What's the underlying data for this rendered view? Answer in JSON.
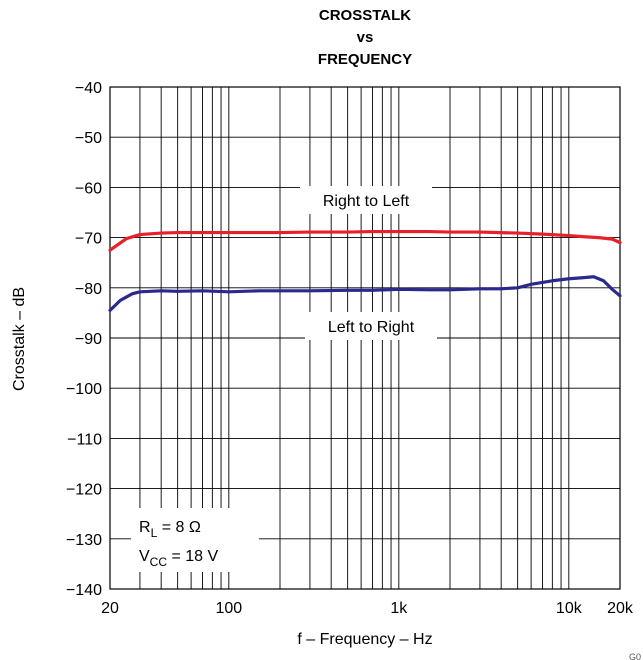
{
  "chart_data": {
    "type": "line",
    "title": [
      "CROSSTALK",
      "vs",
      "FREQUENCY"
    ],
    "xlabel": "f – Frequency – Hz",
    "ylabel": "Crosstalk – dB",
    "x_scale": "log",
    "xlim": [
      20,
      20000
    ],
    "ylim": [
      -140,
      -40
    ],
    "x_ticks": [
      {
        "value": 20,
        "label": "20"
      },
      {
        "value": 100,
        "label": "100"
      },
      {
        "value": 1000,
        "label": "1k"
      },
      {
        "value": 10000,
        "label": "10k"
      },
      {
        "value": 20000,
        "label": "20k"
      }
    ],
    "y_ticks": [
      {
        "value": -40,
        "label": "−40"
      },
      {
        "value": -50,
        "label": "−50"
      },
      {
        "value": -60,
        "label": "−60"
      },
      {
        "value": -70,
        "label": "−70"
      },
      {
        "value": -80,
        "label": "−80"
      },
      {
        "value": -90,
        "label": "−90"
      },
      {
        "value": -100,
        "label": "−100"
      },
      {
        "value": -110,
        "label": "−110"
      },
      {
        "value": -120,
        "label": "−120"
      },
      {
        "value": -130,
        "label": "−130"
      },
      {
        "value": -140,
        "label": "−140"
      }
    ],
    "grid": "log-major-minor",
    "series": [
      {
        "name": "Right to Left",
        "color": "#e8202a",
        "x": [
          20,
          25,
          30,
          40,
          50,
          70,
          100,
          150,
          200,
          300,
          500,
          700,
          1000,
          1500,
          2000,
          3000,
          5000,
          7000,
          10000,
          12000,
          15000,
          18000,
          20000
        ],
        "y": [
          -72.5,
          -70.2,
          -69.4,
          -69.1,
          -69.0,
          -69.0,
          -69.0,
          -69.0,
          -69.0,
          -68.9,
          -68.9,
          -68.8,
          -68.8,
          -68.8,
          -68.9,
          -68.9,
          -69.1,
          -69.3,
          -69.6,
          -69.8,
          -70.0,
          -70.3,
          -71.0
        ]
      },
      {
        "name": "Left to Right",
        "color": "#2a2a8e",
        "x": [
          20,
          23,
          27,
          30,
          40,
          50,
          70,
          100,
          150,
          200,
          300,
          500,
          700,
          1000,
          1500,
          2000,
          3000,
          4000,
          5000,
          6000,
          8000,
          10000,
          12000,
          14000,
          16000,
          18000,
          20000
        ],
        "y": [
          -84.5,
          -82.5,
          -81.2,
          -80.8,
          -80.6,
          -80.7,
          -80.6,
          -80.8,
          -80.6,
          -80.6,
          -80.6,
          -80.5,
          -80.5,
          -80.3,
          -80.4,
          -80.4,
          -80.2,
          -80.2,
          -80.0,
          -79.3,
          -78.6,
          -78.2,
          -78.0,
          -77.8,
          -78.6,
          -80.3,
          -81.6
        ]
      }
    ],
    "annotations": [
      "Right to Left",
      "Left to Right"
    ],
    "conditions": {
      "rl": {
        "main": "R",
        "sub": "L",
        "rest": " = 8 Ω"
      },
      "vcc": {
        "main": "V",
        "sub": "CC",
        "rest": " = 18 V"
      }
    },
    "figure_id": "G0"
  }
}
